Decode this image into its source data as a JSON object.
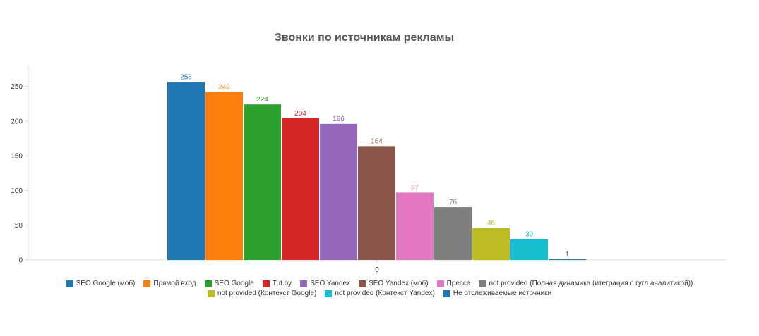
{
  "chart_data": {
    "type": "bar",
    "title": "Звонки по источникам рекламы",
    "categories": [
      "0"
    ],
    "xlabel": "",
    "ylabel": "",
    "ylim": [
      0,
      280
    ],
    "y_ticks": [
      0,
      50,
      100,
      150,
      200,
      250
    ],
    "grid": false,
    "legend_position": "bottom",
    "data_labels": true,
    "series": [
      {
        "name": "SEO Google (моб)",
        "values": [
          256
        ],
        "color": "#1f77b4"
      },
      {
        "name": "Прямой вход",
        "values": [
          242
        ],
        "color": "#ff7f0e"
      },
      {
        "name": "SEO Google",
        "values": [
          224
        ],
        "color": "#2ca02c"
      },
      {
        "name": "Tut.by",
        "values": [
          204
        ],
        "color": "#d62728"
      },
      {
        "name": "SEO Yandex",
        "values": [
          196
        ],
        "color": "#9467bd"
      },
      {
        "name": "SEO Yandex (моб)",
        "values": [
          164
        ],
        "color": "#8c564b"
      },
      {
        "name": "Пресса",
        "values": [
          97
        ],
        "color": "#e377c2"
      },
      {
        "name": "not provided (Полная динамика (итеграция с гугл аналитикой))",
        "values": [
          76
        ],
        "color": "#7f7f7f"
      },
      {
        "name": "not provided (Контекст Google)",
        "values": [
          46
        ],
        "color": "#bcbd22"
      },
      {
        "name": "not provided (Контекст Yandex)",
        "values": [
          30
        ],
        "color": "#17becf"
      },
      {
        "name": "Не отслеживаемые источники",
        "values": [
          1
        ],
        "color": "#1f77b4"
      }
    ]
  }
}
